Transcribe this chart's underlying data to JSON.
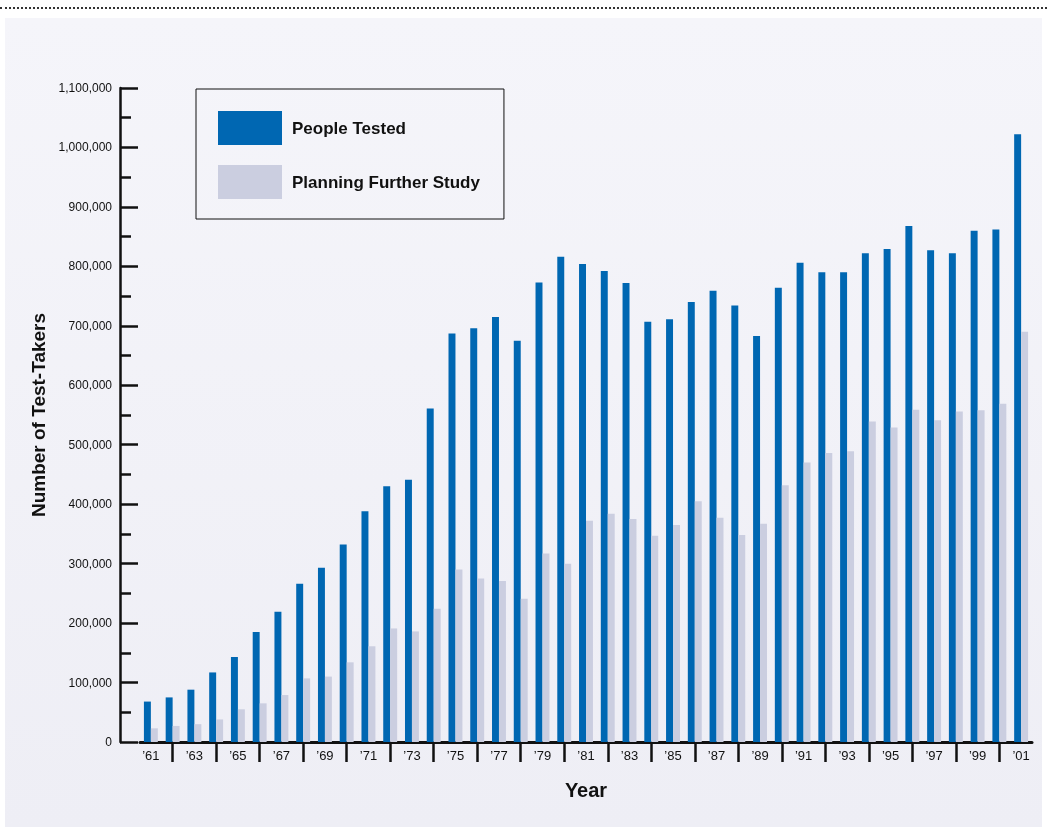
{
  "chart_data": {
    "type": "bar",
    "xlabel": "Year",
    "ylabel": "Number of Test-Takers",
    "categories": [
      "’61",
      null,
      "’63",
      null,
      "’65",
      null,
      "’67",
      null,
      "’69",
      null,
      "’71",
      null,
      "’73",
      null,
      "’75",
      null,
      "’77",
      null,
      "’79",
      null,
      "’81",
      null,
      "’83",
      null,
      "’85",
      null,
      "’87",
      null,
      "’89",
      null,
      "’91",
      null,
      "’93",
      null,
      "’95",
      null,
      "’97",
      null,
      "’99",
      null,
      "’01"
    ],
    "series": [
      {
        "name": "People Tested",
        "color": "#0067b2",
        "values": [
          68000,
          75000,
          88000,
          117000,
          143000,
          185000,
          219000,
          266000,
          293000,
          332000,
          388000,
          430000,
          441000,
          561000,
          687000,
          696000,
          715000,
          675000,
          773000,
          816000,
          804000,
          792000,
          772000,
          707000,
          711000,
          740000,
          759000,
          734000,
          683000,
          764000,
          806000,
          790000,
          790000,
          822000,
          829000,
          868000,
          827000,
          822000,
          860000,
          862000,
          1022000
        ]
      },
      {
        "name": "Planning Further Study",
        "color": "#cbcee0",
        "values": [
          23000,
          27000,
          30000,
          38000,
          55000,
          65000,
          79000,
          107000,
          110000,
          134000,
          161000,
          191000,
          186000,
          224000,
          290000,
          275000,
          271000,
          241000,
          317000,
          300000,
          372000,
          384000,
          375000,
          347000,
          365000,
          405000,
          377000,
          348000,
          367000,
          432000,
          470000,
          486000,
          489000,
          539000,
          529000,
          559000,
          541000,
          556000,
          558000,
          569000,
          690000
        ]
      }
    ],
    "ylim": [
      0,
      1100000
    ],
    "yticks": [
      0,
      {
        "value": 50000,
        "label": null
      },
      {
        "value": 100000,
        "label": "100,000"
      },
      {
        "value": 150000,
        "label": null
      },
      {
        "value": 200000,
        "label": "200,000"
      },
      {
        "value": 250000,
        "label": null
      },
      {
        "value": 300000,
        "label": "300,000"
      },
      {
        "value": 350000,
        "label": null
      },
      {
        "value": 400000,
        "label": "400,000"
      },
      {
        "value": 450000,
        "label": null
      },
      {
        "value": 500000,
        "label": "500,000"
      },
      {
        "value": 550000,
        "label": null
      },
      {
        "value": 600000,
        "label": "600,000"
      },
      {
        "value": 650000,
        "label": null
      },
      {
        "value": 700000,
        "label": "700,000"
      },
      {
        "value": 750000,
        "label": null
      },
      {
        "value": 800000,
        "label": "800,000"
      },
      {
        "value": 850000,
        "label": null
      },
      {
        "value": 900000,
        "label": "900,000"
      },
      {
        "value": 950000,
        "label": null
      },
      {
        "value": 1000000,
        "label": "1,000,000"
      },
      {
        "value": 1050000,
        "label": null
      },
      {
        "value": 1100000,
        "label": "1,100,000"
      }
    ],
    "legend": "top left"
  }
}
